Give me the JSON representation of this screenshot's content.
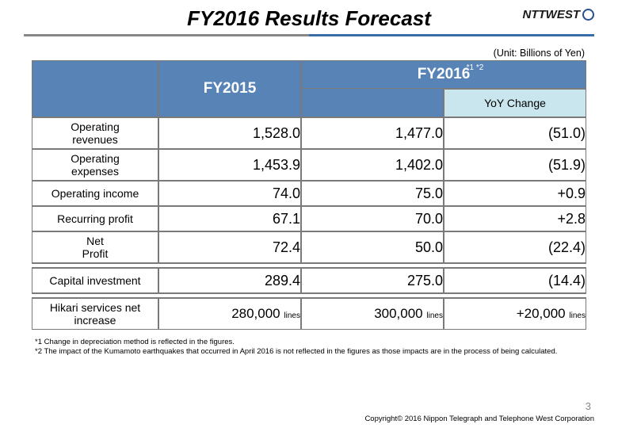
{
  "title": "FY2016 Results Forecast",
  "logo_text": "NTTWEST",
  "unit_label": "(Unit: Billions of Yen)",
  "colors": {
    "header_bg": "#5783b7",
    "yoy_bg": "#c9e6ef",
    "border": "#7a7a7a"
  },
  "table": {
    "col_headers": {
      "fy2015": "FY2015",
      "fy2016": "FY2016",
      "fy2016_sup": "*1 *2",
      "yoy": "YoY Change"
    },
    "sections": [
      {
        "rows": [
          {
            "label": "Operating\nrevenues",
            "fy2015": "1,528.0",
            "fy2016": "1,477.0",
            "yoy": "(51.0)",
            "tall": true
          },
          {
            "label": "Operating\nexpenses",
            "fy2015": "1,453.9",
            "fy2016": "1,402.0",
            "yoy": "(51.9)",
            "tall": true
          },
          {
            "label": "Operating income",
            "fy2015": "74.0",
            "fy2016": "75.0",
            "yoy": "+0.9"
          },
          {
            "label": "Recurring profit",
            "fy2015": "67.1",
            "fy2016": "70.0",
            "yoy": "+2.8"
          },
          {
            "label": "Net\nProfit",
            "fy2015": "72.4",
            "fy2016": "50.0",
            "yoy": "(22.4)",
            "tall": true
          }
        ]
      },
      {
        "rows": [
          {
            "label": "Capital investment",
            "fy2015": "289.4",
            "fy2016": "275.0",
            "yoy": "(14.4)"
          }
        ]
      },
      {
        "rows": [
          {
            "label": "Hikari services net\nincrease",
            "fy2015": "280,000",
            "fy2016": "300,000",
            "yoy": "+20,000",
            "unit": "lines",
            "tall": true
          }
        ]
      }
    ]
  },
  "footnotes": [
    "*1  Change in depreciation method  is reflected in the figures.",
    "*2  The  impact of the Kumamoto  earthquakes that occurred in April 2016 is not reflected in the figures as those impacts are in the process of being calculated."
  ],
  "page_number": "3",
  "copyright": "Copyright© 2016 Nippon Telegraph and Telephone West Corporation"
}
